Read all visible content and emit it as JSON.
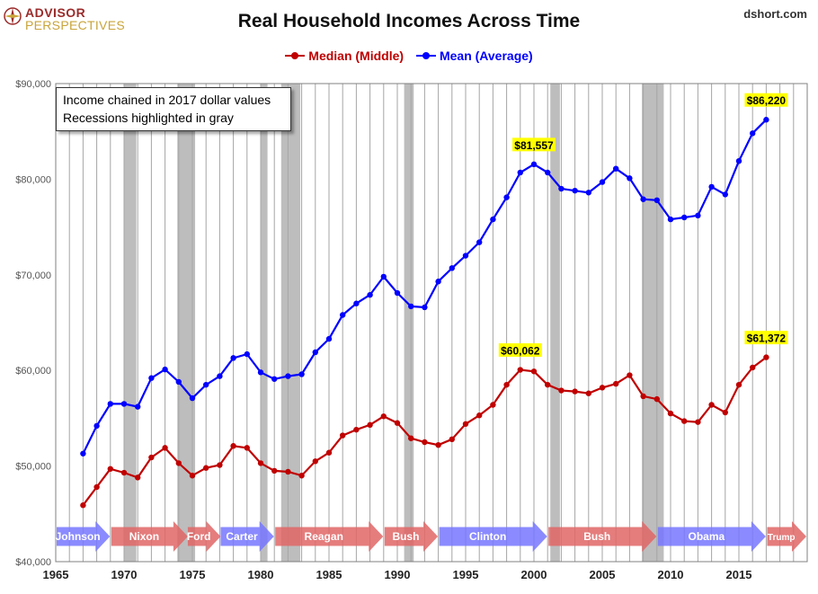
{
  "header": {
    "logo_line1": "ADVISOR",
    "logo_line2": "PERSPECTIVES",
    "title": "Real Household Incomes Across Time",
    "source": "dshort.com"
  },
  "note": {
    "line1": "Income chained in 2017 dollar values",
    "line2": "Recessions highlighted in gray"
  },
  "colors": {
    "median": "#c00000",
    "mean": "#0000ff",
    "recession": "#bdbdbd",
    "grid": "#a6a6a6",
    "highlight": "#ffff00",
    "president_red": "#e06666",
    "president_blue": "#7777ff"
  },
  "chart_data": {
    "type": "line",
    "title": "Real Household Incomes Across Time",
    "xlim": [
      1965,
      2020
    ],
    "ylim": [
      40000,
      90000
    ],
    "x_ticks": [
      "1965",
      "1970",
      "1975",
      "1980",
      "1985",
      "1990",
      "1995",
      "2000",
      "2005",
      "2010",
      "2015"
    ],
    "y_ticks": [
      "$40,000",
      "$50,000",
      "$60,000",
      "$70,000",
      "$80,000",
      "$90,000"
    ],
    "grid": "vertical",
    "legend_position": "top-center",
    "x": [
      1967,
      1968,
      1969,
      1970,
      1971,
      1972,
      1973,
      1974,
      1975,
      1976,
      1977,
      1978,
      1979,
      1980,
      1981,
      1982,
      1983,
      1984,
      1985,
      1986,
      1987,
      1988,
      1989,
      1990,
      1991,
      1992,
      1993,
      1994,
      1995,
      1996,
      1997,
      1998,
      1999,
      2000,
      2001,
      2002,
      2003,
      2004,
      2005,
      2006,
      2007,
      2008,
      2009,
      2010,
      2011,
      2012,
      2013,
      2014,
      2015,
      2016,
      2017
    ],
    "series": [
      {
        "name": "Median (Middle)",
        "color": "#c00000",
        "values": [
          45900,
          47800,
          49700,
          49300,
          48800,
          50900,
          51900,
          50300,
          49000,
          49800,
          50100,
          52100,
          51900,
          50300,
          49500,
          49400,
          49000,
          50500,
          51400,
          53200,
          53800,
          54300,
          55200,
          54500,
          52900,
          52500,
          52200,
          52800,
          54400,
          55300,
          56400,
          58500,
          60062,
          59900,
          58500,
          57900,
          57800,
          57600,
          58200,
          58600,
          59500,
          57300,
          57000,
          55500,
          54700,
          54600,
          56400,
          55600,
          58500,
          60300,
          61372
        ]
      },
      {
        "name": "Mean (Average)",
        "color": "#0000ff",
        "values": [
          51300,
          54200,
          56500,
          56500,
          56200,
          59200,
          60100,
          58800,
          57100,
          58500,
          59400,
          61300,
          61700,
          59800,
          59100,
          59400,
          59600,
          61900,
          63300,
          65800,
          67000,
          67900,
          69800,
          68100,
          66700,
          66600,
          69300,
          70700,
          72000,
          73400,
          75800,
          78100,
          80700,
          81557,
          80700,
          79000,
          78800,
          78600,
          79700,
          81100,
          80100,
          77900,
          77800,
          75800,
          76000,
          76200,
          79200,
          78400,
          81900,
          84800,
          86220
        ]
      }
    ],
    "annotations": [
      {
        "x": 1999,
        "y": 60062,
        "label": "$60,062",
        "series": "Median (Middle)"
      },
      {
        "x": 2000,
        "y": 81557,
        "label": "$81,557",
        "series": "Mean (Average)"
      },
      {
        "x": 2017,
        "y": 61372,
        "label": "$61,372",
        "series": "Median (Middle)"
      },
      {
        "x": 2017,
        "y": 86220,
        "label": "$86,220",
        "series": "Mean (Average)"
      }
    ],
    "recessions": [
      {
        "start": 1970.0,
        "end": 1970.9
      },
      {
        "start": 1973.9,
        "end": 1975.2
      },
      {
        "start": 1980.0,
        "end": 1980.5
      },
      {
        "start": 1981.5,
        "end": 1982.9
      },
      {
        "start": 1990.5,
        "end": 1991.2
      },
      {
        "start": 2001.2,
        "end": 2001.9
      },
      {
        "start": 2007.9,
        "end": 2009.5
      }
    ],
    "presidents": [
      {
        "name": "Johnson",
        "start": 1965.0,
        "end": 1968.9,
        "color": "blue"
      },
      {
        "name": "Nixon",
        "start": 1969.0,
        "end": 1974.6,
        "color": "red"
      },
      {
        "name": "Ford",
        "start": 1974.6,
        "end": 1977.0,
        "color": "red"
      },
      {
        "name": "Carter",
        "start": 1977.0,
        "end": 1980.9,
        "color": "blue"
      },
      {
        "name": "Reagan",
        "start": 1981.0,
        "end": 1988.9,
        "color": "red"
      },
      {
        "name": "Bush",
        "start": 1989.0,
        "end": 1992.9,
        "color": "red"
      },
      {
        "name": "Clinton",
        "start": 1993.0,
        "end": 2000.9,
        "color": "blue"
      },
      {
        "name": "Bush",
        "start": 2001.0,
        "end": 2008.9,
        "color": "red"
      },
      {
        "name": "Obama",
        "start": 2009.0,
        "end": 2016.9,
        "color": "blue"
      },
      {
        "name": "Trump",
        "start": 2017.0,
        "end": 2020.0,
        "color": "red"
      }
    ]
  }
}
